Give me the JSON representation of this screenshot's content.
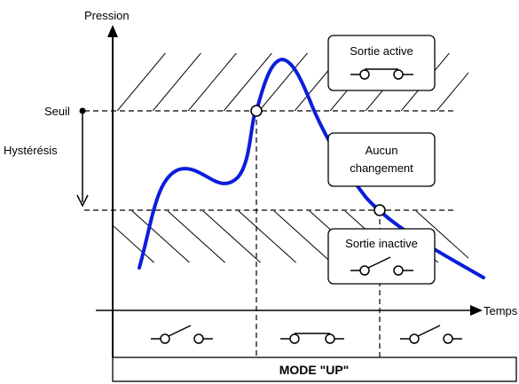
{
  "axis": {
    "y_label": "Pression",
    "x_label": "Temps"
  },
  "levels": {
    "threshold_label": "Seuil",
    "hysteresis_label": "Hystérésis"
  },
  "callouts": {
    "active": "Sortie active",
    "no_change_line1": "Aucun",
    "no_change_line2": "changement",
    "inactive": "Sortie inactive"
  },
  "mode_label": "MODE \"UP\"",
  "timeline_states": [
    "open",
    "closed",
    "open"
  ],
  "colors": {
    "curve": "#0a1edc",
    "lines": "#000000",
    "background": "#ffffff"
  }
}
